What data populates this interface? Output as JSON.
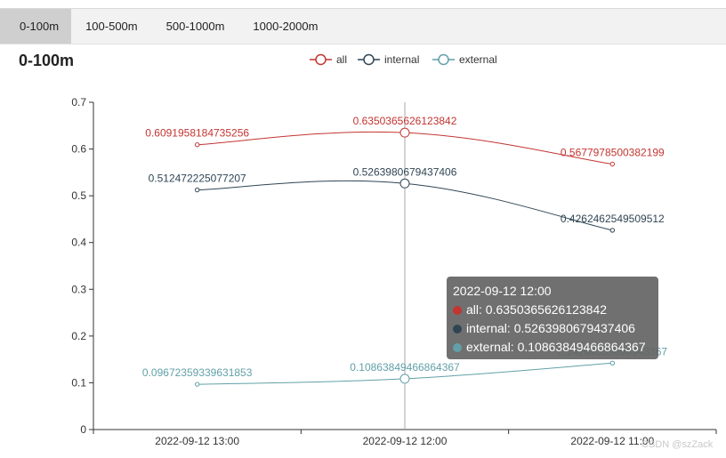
{
  "tabs": [
    {
      "label": "0-100m",
      "active": true
    },
    {
      "label": "100-500m",
      "active": false
    },
    {
      "label": "500-1000m",
      "active": false
    },
    {
      "label": "1000-2000m",
      "active": false
    }
  ],
  "title": "0-100m",
  "chart_data": {
    "type": "line",
    "title": "0-100m",
    "categories": [
      "2022-09-12 13:00",
      "2022-09-12 12:00",
      "2022-09-12 11:00"
    ],
    "yticks": [
      "0",
      "0.1",
      "0.2",
      "0.3",
      "0.4",
      "0.5",
      "0.6",
      "0.7"
    ],
    "ylim": [
      0,
      0.7
    ],
    "legend_position": "top-center",
    "grid": false,
    "smooth": true,
    "series": [
      {
        "name": "all",
        "color": "#c23531",
        "values": [
          0.6091958184735256,
          0.6350365626123842,
          0.5677978500382199
        ],
        "labels": [
          "0.6091958184735256",
          "0.6350365626123842",
          "0.5677978500382199"
        ]
      },
      {
        "name": "internal",
        "color": "#2f4554",
        "values": [
          0.512472225077207,
          0.5263980679437406,
          0.4262462549509512
        ],
        "labels": [
          "0.512472225077207",
          "0.5263980679437406",
          "0.4262462549509512"
        ]
      },
      {
        "name": "external",
        "color": "#61a0a8",
        "values": [
          0.09672359339631853,
          0.10863849466864367,
          0.14209359696943366
        ],
        "labels": [
          "0.09672359339631853",
          "0.10863849466864367",
          "0.14209359696943367"
        ]
      }
    ]
  },
  "tooltip": {
    "header": "2022-09-12 12:00",
    "rows": [
      {
        "text": "all: 0.6350365626123842",
        "color": "#c23531"
      },
      {
        "text": "internal: 0.5263980679437406",
        "color": "#2f4554"
      },
      {
        "text": "external: 0.10863849466864367",
        "color": "#61a0a8"
      }
    ]
  },
  "watermark": "CSDN @szZack"
}
